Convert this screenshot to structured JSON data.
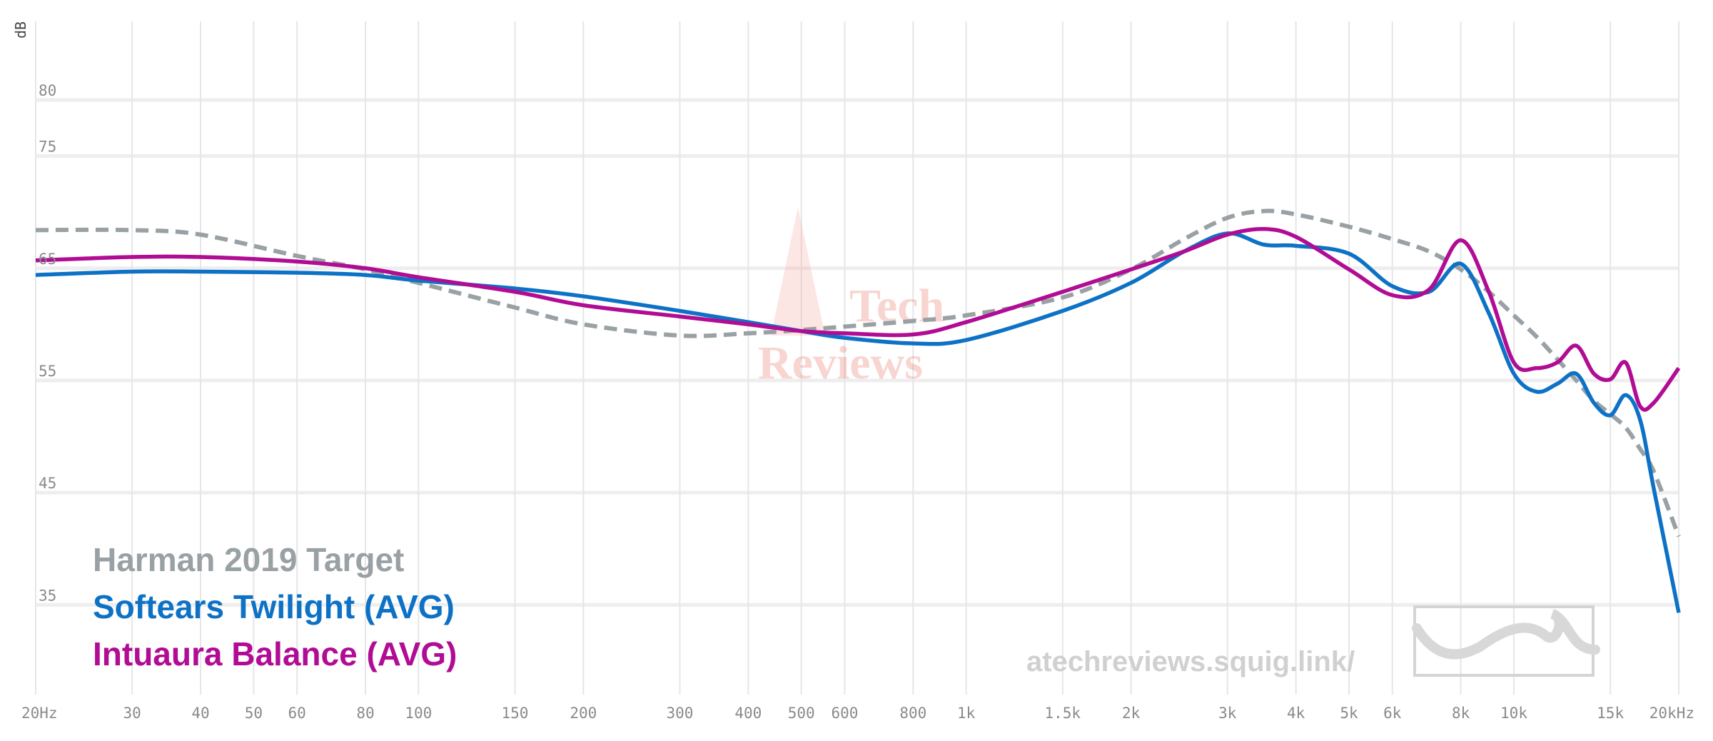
{
  "chart_data": {
    "type": "line",
    "y_label": "dB",
    "x": [
      20,
      30,
      40,
      60,
      80,
      100,
      150,
      200,
      300,
      400,
      500,
      600,
      800,
      1000,
      1500,
      2000,
      2500,
      3000,
      3500,
      4000,
      5000,
      6000,
      7000,
      8000,
      9000,
      10000,
      11000,
      12000,
      13000,
      14000,
      15000,
      16000,
      17000,
      18000,
      20000
    ],
    "series": [
      {
        "name": "Harman 2019 Target",
        "color": "#99a1a5",
        "dash": "dashed",
        "values": [
          68.4,
          68.4,
          68.0,
          66.1,
          64.9,
          63.7,
          61.5,
          60.0,
          59.0,
          59.2,
          59.5,
          59.8,
          60.3,
          60.8,
          62.4,
          64.9,
          67.6,
          69.5,
          70.1,
          69.8,
          68.7,
          67.6,
          66.5,
          64.9,
          62.9,
          60.8,
          58.9,
          56.9,
          55.0,
          53.2,
          52.0,
          50.8,
          48.9,
          46.9,
          41.1
        ]
      },
      {
        "name": "Softears Twilight (AVG)",
        "color": "#0d72c5",
        "dash": "solid",
        "values": [
          64.4,
          64.7,
          64.7,
          64.6,
          64.4,
          63.9,
          63.2,
          62.5,
          61.2,
          60.2,
          59.4,
          58.8,
          58.3,
          58.6,
          61.2,
          63.7,
          66.5,
          68.1,
          67.1,
          67.0,
          66.3,
          63.4,
          62.9,
          65.4,
          61.0,
          55.6,
          54.0,
          54.7,
          55.6,
          53.0,
          51.9,
          53.7,
          51.5,
          45.4,
          34.3
        ]
      },
      {
        "name": "Intuaura Balance (AVG)",
        "color": "#b10c94",
        "dash": "solid",
        "values": [
          65.7,
          66.0,
          66.0,
          65.6,
          65.0,
          64.2,
          62.9,
          61.7,
          60.7,
          60.0,
          59.4,
          59.2,
          59.1,
          60.2,
          62.9,
          64.9,
          66.5,
          68.0,
          68.5,
          67.8,
          64.9,
          62.6,
          63.1,
          67.5,
          62.9,
          56.6,
          56.1,
          56.6,
          58.1,
          55.6,
          55.1,
          56.6,
          52.7,
          53.0,
          56.1
        ]
      }
    ],
    "log_x": true,
    "xlim": [
      20,
      20000
    ],
    "xticks": [
      {
        "value": 20,
        "label": "20Hz"
      },
      30,
      40,
      50,
      60,
      80,
      100,
      150,
      200,
      300,
      400,
      500,
      600,
      800,
      {
        "value": 1000,
        "label": "1k"
      },
      {
        "value": 1500,
        "label": "1.5k"
      },
      {
        "value": 2000,
        "label": "2k"
      },
      {
        "value": 3000,
        "label": "3k"
      },
      {
        "value": 4000,
        "label": "4k"
      },
      {
        "value": 5000,
        "label": "5k"
      },
      {
        "value": 6000,
        "label": "6k"
      },
      {
        "value": 8000,
        "label": "8k"
      },
      {
        "value": 10000,
        "label": "10k"
      },
      {
        "value": 15000,
        "label": "15k"
      },
      {
        "value": 20000,
        "label": "20kHz"
      }
    ],
    "ylim": [
      27,
      87
    ],
    "yticks": [
      35,
      45,
      55,
      65,
      75,
      80
    ],
    "grid": true,
    "legend": "bottom-left",
    "watermark": "atechreviews.squig.link/",
    "logo_text": [
      "Tech",
      "Reviews"
    ]
  }
}
